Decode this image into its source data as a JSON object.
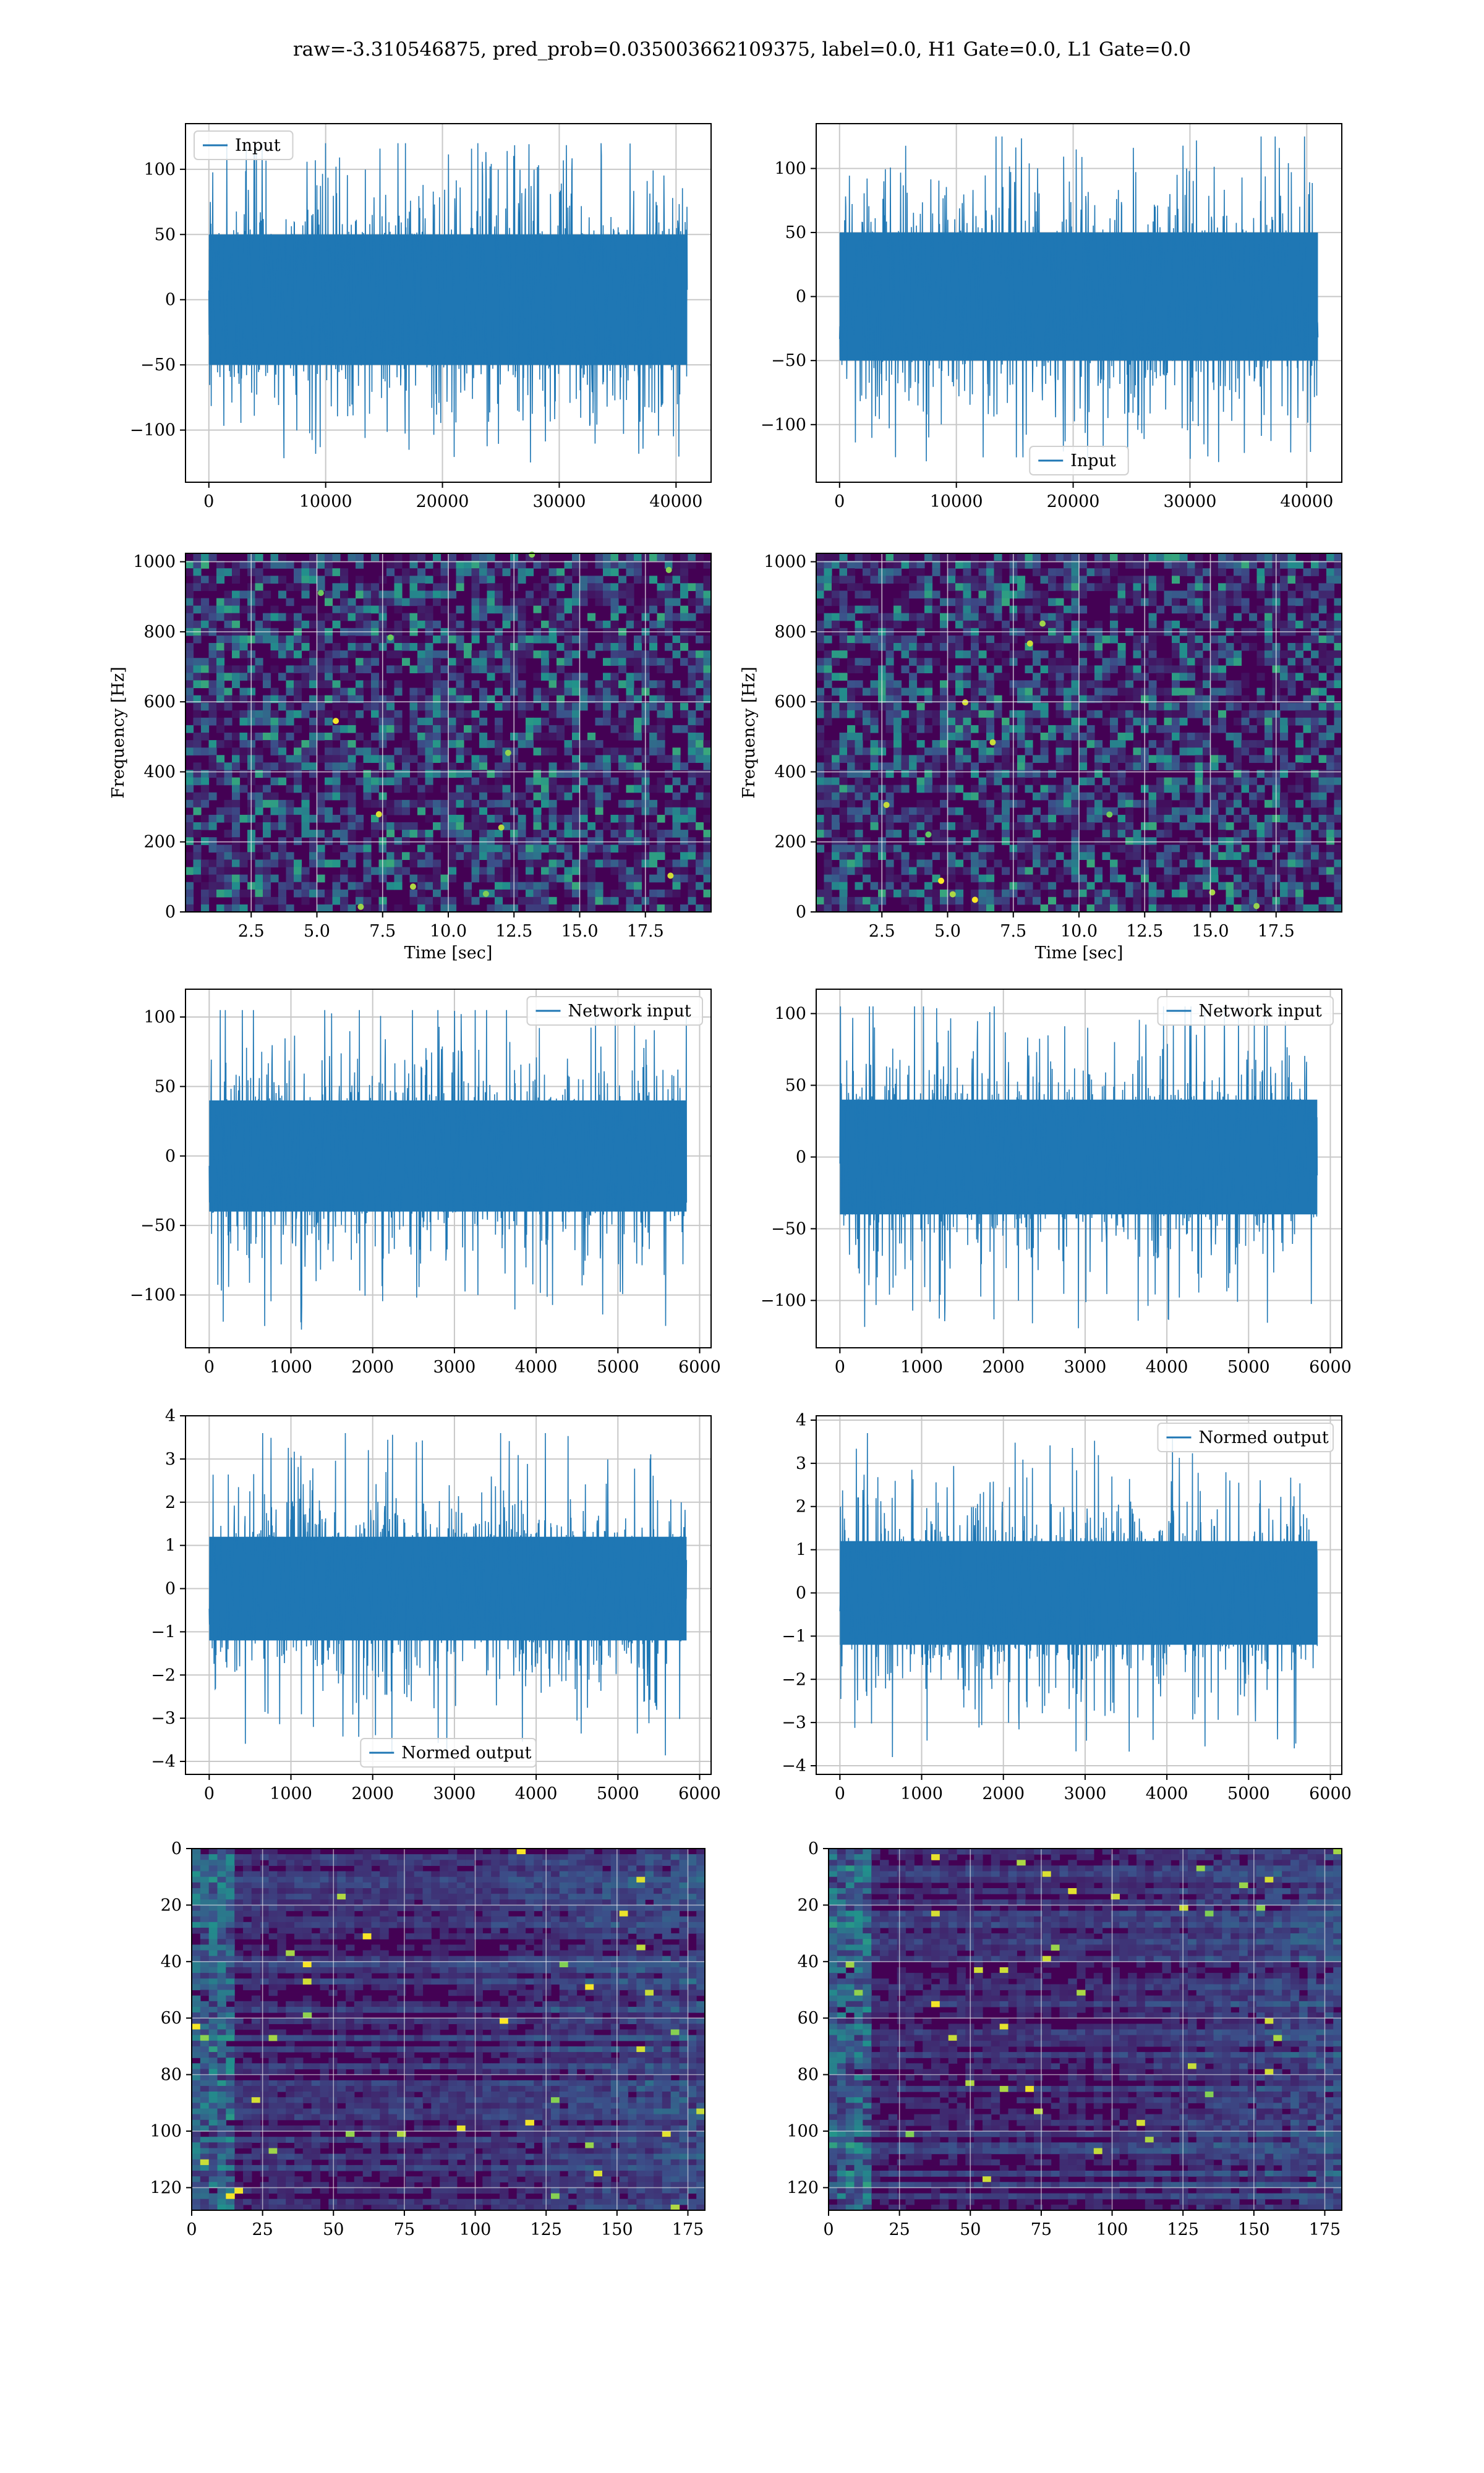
{
  "figure": {
    "title": "raw=-3.310546875, pred_prob=0.035003662109375, label=0.0, H1 Gate=0.0, L1 Gate=0.0"
  },
  "colors": {
    "line": "#1f77b4",
    "grid": "#c8c8c8"
  },
  "chart_data": [
    {
      "id": "input-left",
      "type": "line",
      "subtype": "dense-noise-timeseries",
      "x_ticks": [
        0,
        10000,
        20000,
        30000,
        40000
      ],
      "y_ticks": [
        -100,
        -50,
        0,
        50,
        100
      ],
      "xlim": [
        -2000,
        43000
      ],
      "ylim": [
        -140,
        135
      ],
      "series": [
        {
          "name": "Input",
          "n_samples": 40960,
          "typical_range": [
            -50,
            50
          ],
          "peak_range": [
            -125,
            120
          ]
        }
      ],
      "legend_loc": "upper left",
      "grid": true
    },
    {
      "id": "input-right",
      "type": "line",
      "subtype": "dense-noise-timeseries",
      "x_ticks": [
        0,
        10000,
        20000,
        30000,
        40000
      ],
      "y_ticks": [
        -100,
        -50,
        0,
        50,
        100
      ],
      "xlim": [
        -2000,
        43000
      ],
      "ylim": [
        -145,
        135
      ],
      "series": [
        {
          "name": "Input",
          "n_samples": 40960,
          "typical_range": [
            -50,
            50
          ],
          "peak_range": [
            -130,
            125
          ]
        }
      ],
      "legend_loc": "lower center",
      "grid": true
    },
    {
      "id": "spectrogram-left",
      "type": "heatmap",
      "colormap": "viridis",
      "x_ticks": [
        2.5,
        5.0,
        7.5,
        10.0,
        12.5,
        15.0,
        17.5
      ],
      "y_ticks": [
        0,
        200,
        400,
        600,
        800,
        1000
      ],
      "xlim": [
        0,
        20
      ],
      "ylim": [
        0,
        1024
      ],
      "xlabel": "Time [sec]",
      "ylabel": "Frequency [Hz]",
      "grid": true
    },
    {
      "id": "spectrogram-right",
      "type": "heatmap",
      "colormap": "viridis",
      "x_ticks": [
        2.5,
        5.0,
        7.5,
        10.0,
        12.5,
        15.0,
        17.5
      ],
      "y_ticks": [
        0,
        200,
        400,
        600,
        800,
        1000
      ],
      "xlim": [
        0,
        20
      ],
      "ylim": [
        0,
        1024
      ],
      "xlabel": "Time [sec]",
      "ylabel": "Frequency [Hz]",
      "grid": true
    },
    {
      "id": "network-input-left",
      "type": "line",
      "subtype": "dense-noise-timeseries",
      "x_ticks": [
        0,
        1000,
        2000,
        3000,
        4000,
        5000,
        6000
      ],
      "y_ticks": [
        -100,
        -50,
        0,
        50,
        100
      ],
      "xlim": [
        -290,
        6140
      ],
      "ylim": [
        -138,
        120
      ],
      "series": [
        {
          "name": "Network input",
          "n_samples": 5840,
          "typical_range": [
            -40,
            40
          ],
          "peak_range": [
            -125,
            105
          ]
        }
      ],
      "legend_loc": "upper right",
      "grid": true
    },
    {
      "id": "network-input-right",
      "type": "line",
      "subtype": "dense-noise-timeseries",
      "x_ticks": [
        0,
        1000,
        2000,
        3000,
        4000,
        5000,
        6000
      ],
      "y_ticks": [
        -100,
        -50,
        0,
        50,
        100
      ],
      "xlim": [
        -290,
        6140
      ],
      "ylim": [
        -133,
        117
      ],
      "series": [
        {
          "name": "Network input",
          "n_samples": 5840,
          "typical_range": [
            -40,
            40
          ],
          "peak_range": [
            -120,
            105
          ]
        }
      ],
      "legend_loc": "upper right",
      "grid": true
    },
    {
      "id": "normed-output-left",
      "type": "line",
      "subtype": "dense-noise-timeseries",
      "x_ticks": [
        0,
        1000,
        2000,
        3000,
        4000,
        5000,
        6000
      ],
      "y_ticks": [
        -4,
        -3,
        -2,
        -1,
        0,
        1,
        2,
        3,
        4
      ],
      "xlim": [
        -290,
        6140
      ],
      "ylim": [
        -4.3,
        4.0
      ],
      "series": [
        {
          "name": "Normed output",
          "n_samples": 5840,
          "typical_range": [
            -1.2,
            1.2
          ],
          "peak_range": [
            -3.9,
            3.6
          ]
        }
      ],
      "legend_loc": "lower center",
      "grid": true
    },
    {
      "id": "normed-output-right",
      "type": "line",
      "subtype": "dense-noise-timeseries",
      "x_ticks": [
        0,
        1000,
        2000,
        3000,
        4000,
        5000,
        6000
      ],
      "y_ticks": [
        -4,
        -3,
        -2,
        -1,
        0,
        1,
        2,
        3,
        4
      ],
      "xlim": [
        -290,
        6140
      ],
      "ylim": [
        -4.2,
        4.1
      ],
      "series": [
        {
          "name": "Normed output",
          "n_samples": 5840,
          "typical_range": [
            -1.2,
            1.2
          ],
          "peak_range": [
            -3.8,
            3.7
          ]
        }
      ],
      "legend_loc": "upper right",
      "grid": true
    },
    {
      "id": "feature-map-left",
      "type": "heatmap",
      "colormap": "viridis",
      "x_ticks": [
        0,
        25,
        50,
        75,
        100,
        125,
        150,
        175
      ],
      "y_ticks": [
        0,
        20,
        40,
        60,
        80,
        100,
        120
      ],
      "xlim": [
        0,
        181
      ],
      "ylim": [
        128,
        0
      ],
      "grid": true
    },
    {
      "id": "feature-map-right",
      "type": "heatmap",
      "colormap": "viridis",
      "x_ticks": [
        0,
        25,
        50,
        75,
        100,
        125,
        150,
        175
      ],
      "y_ticks": [
        0,
        20,
        40,
        60,
        80,
        100,
        120
      ],
      "xlim": [
        0,
        181
      ],
      "ylim": [
        128,
        0
      ],
      "grid": true
    }
  ]
}
